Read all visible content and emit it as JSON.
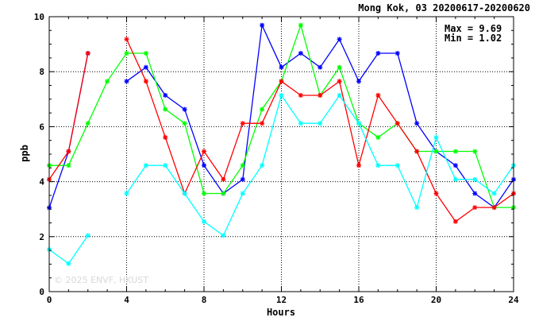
{
  "chart_data": {
    "type": "line",
    "title": "Mong Kok, 03 20200617-20200620",
    "xlabel": "Hours",
    "ylabel": "ppb",
    "xlim": [
      0,
      24
    ],
    "ylim": [
      0,
      10
    ],
    "xticks": [
      0,
      4,
      8,
      12,
      16,
      20,
      24
    ],
    "yticks": [
      0,
      2,
      4,
      6,
      8,
      10
    ],
    "grid": true,
    "stats": {
      "max_label": "Max = 9.69",
      "min_label": "Min = 1.02"
    },
    "watermark": "© 2025 ENVF, HKUST",
    "x": [
      0,
      1,
      2,
      3,
      4,
      5,
      6,
      7,
      8,
      9,
      10,
      11,
      12,
      13,
      14,
      15,
      16,
      17,
      18,
      19,
      20,
      21,
      22,
      23,
      24
    ],
    "series": [
      {
        "color": "#0000ff",
        "values": [
          3.05,
          5.1,
          8.67,
          null,
          7.65,
          8.16,
          7.14,
          6.63,
          4.59,
          3.57,
          4.08,
          9.69,
          8.16,
          8.67,
          8.16,
          9.18,
          7.65,
          8.67,
          8.67,
          6.12,
          5.1,
          4.59,
          3.57,
          3.06,
          4.08
        ]
      },
      {
        "color": "#00ff00",
        "values": [
          4.59,
          4.59,
          6.12,
          7.65,
          8.67,
          8.67,
          6.63,
          6.12,
          3.57,
          3.57,
          4.59,
          6.63,
          7.65,
          9.69,
          7.14,
          8.16,
          6.12,
          5.61,
          6.12,
          5.1,
          5.1,
          5.1,
          5.1,
          3.06,
          3.06
        ]
      },
      {
        "color": "#ff0000",
        "values": [
          4.08,
          5.1,
          8.67,
          null,
          9.18,
          7.65,
          5.61,
          3.57,
          5.1,
          4.08,
          6.12,
          6.12,
          7.65,
          7.14,
          7.14,
          7.65,
          4.59,
          7.14,
          6.12,
          5.1,
          3.57,
          2.55,
          3.06,
          3.06,
          3.57
        ]
      },
      {
        "color": "#00ffff",
        "values": [
          1.53,
          1.02,
          2.04,
          null,
          3.57,
          4.59,
          4.59,
          3.57,
          2.55,
          2.04,
          3.57,
          4.59,
          7.14,
          6.12,
          6.12,
          7.14,
          6.12,
          4.59,
          4.59,
          3.06,
          5.61,
          4.08,
          4.08,
          3.57,
          4.59
        ]
      }
    ]
  }
}
